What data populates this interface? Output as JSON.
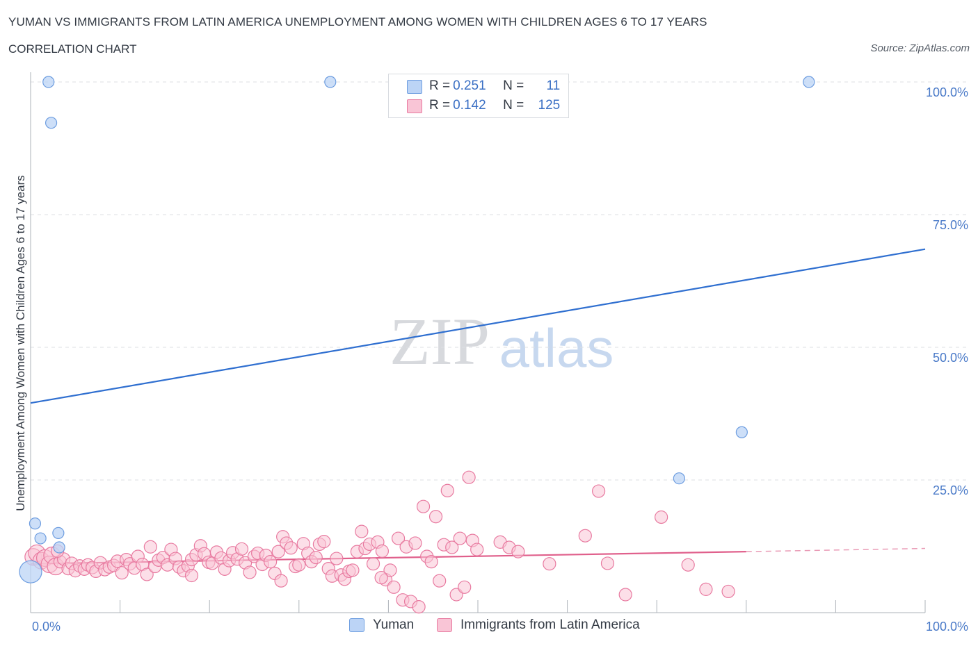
{
  "chart_data": {
    "type": "scatter",
    "title": "YUMAN VS IMMIGRANTS FROM LATIN AMERICA UNEMPLOYMENT AMONG WOMEN WITH CHILDREN AGES 6 TO 17 YEARS",
    "subtitle": "CORRELATION CHART",
    "source": "Source: ZipAtlas.com",
    "ylabel": "Unemployment Among Women with Children Ages 6 to 17 years",
    "xlim": [
      0,
      100
    ],
    "ylim": [
      0,
      100
    ],
    "x_tick_labels": [
      "0.0%",
      "100.0%"
    ],
    "y_tick_labels": [
      "100.0%",
      "75.0%",
      "50.0%",
      "25.0%"
    ],
    "y_tick_values": [
      100,
      75,
      50,
      25
    ],
    "watermark": {
      "zip": "ZIP",
      "atlas": "atlas"
    },
    "legend": {
      "rows": [
        {
          "r_label": "R = ",
          "r_value": "0.251",
          "n_label": "N = ",
          "n_value": "11"
        },
        {
          "r_label": "R = ",
          "r_value": "0.142",
          "n_label": "N = ",
          "n_value": "125"
        }
      ]
    },
    "series": [
      {
        "name": "Yuman",
        "color": "#6d9de0",
        "fill": "#bcd4f6",
        "trend": {
          "x0": 0,
          "y0": 39.5,
          "x1": 100,
          "y1": 68.5
        },
        "points": [
          {
            "x": 2.0,
            "y": 100
          },
          {
            "x": 2.3,
            "y": 92.3
          },
          {
            "x": 33.5,
            "y": 100
          },
          {
            "x": 87.0,
            "y": 100
          },
          {
            "x": 79.5,
            "y": 34.0
          },
          {
            "x": 72.5,
            "y": 25.3
          },
          {
            "x": 0.5,
            "y": 16.8
          },
          {
            "x": 1.1,
            "y": 14.0
          },
          {
            "x": 3.1,
            "y": 15.0
          },
          {
            "x": 3.2,
            "y": 12.3
          },
          {
            "x": 0.0,
            "y": 7.7
          }
        ]
      },
      {
        "name": "Immigrants from Latin America",
        "color": "#e87aa0",
        "fill": "#f9c5d6",
        "trend": {
          "x0": 0,
          "y0": 9.2,
          "x1": 80,
          "y1": 11.5,
          "dash_x1": 100,
          "dash_y1": 12.1
        },
        "points": [
          {
            "x": 0.3,
            "y": 10.5
          },
          {
            "x": 0.7,
            "y": 11.2
          },
          {
            "x": 1.2,
            "y": 9.8
          },
          {
            "x": 1.6,
            "y": 10.3
          },
          {
            "x": 2.1,
            "y": 9.1
          },
          {
            "x": 2.4,
            "y": 10.8
          },
          {
            "x": 2.8,
            "y": 8.7
          },
          {
            "x": 3.3,
            "y": 9.6
          },
          {
            "x": 3.7,
            "y": 10.1
          },
          {
            "x": 4.2,
            "y": 8.3
          },
          {
            "x": 4.6,
            "y": 9.3
          },
          {
            "x": 5.0,
            "y": 7.9
          },
          {
            "x": 5.5,
            "y": 8.8
          },
          {
            "x": 6.0,
            "y": 8.2
          },
          {
            "x": 6.4,
            "y": 9.0
          },
          {
            "x": 6.9,
            "y": 8.5
          },
          {
            "x": 7.3,
            "y": 7.8
          },
          {
            "x": 7.8,
            "y": 9.4
          },
          {
            "x": 8.3,
            "y": 8.1
          },
          {
            "x": 8.8,
            "y": 8.6
          },
          {
            "x": 9.3,
            "y": 8.9
          },
          {
            "x": 9.7,
            "y": 9.7
          },
          {
            "x": 10.2,
            "y": 7.5
          },
          {
            "x": 10.7,
            "y": 10.0
          },
          {
            "x": 11.1,
            "y": 9.2
          },
          {
            "x": 11.6,
            "y": 8.4
          },
          {
            "x": 12.0,
            "y": 10.6
          },
          {
            "x": 12.5,
            "y": 9.1
          },
          {
            "x": 13.0,
            "y": 7.2
          },
          {
            "x": 13.4,
            "y": 12.4
          },
          {
            "x": 13.9,
            "y": 8.7
          },
          {
            "x": 14.3,
            "y": 9.9
          },
          {
            "x": 14.8,
            "y": 10.4
          },
          {
            "x": 15.3,
            "y": 9.0
          },
          {
            "x": 15.7,
            "y": 11.9
          },
          {
            "x": 16.2,
            "y": 10.2
          },
          {
            "x": 16.6,
            "y": 8.6
          },
          {
            "x": 17.1,
            "y": 7.9
          },
          {
            "x": 17.6,
            "y": 8.8
          },
          {
            "x": 18.0,
            "y": 10.0
          },
          {
            "x": 18.5,
            "y": 10.9
          },
          {
            "x": 19.0,
            "y": 12.6
          },
          {
            "x": 19.4,
            "y": 11.1
          },
          {
            "x": 19.9,
            "y": 9.5
          },
          {
            "x": 20.3,
            "y": 9.3
          },
          {
            "x": 20.8,
            "y": 11.4
          },
          {
            "x": 21.3,
            "y": 10.3
          },
          {
            "x": 21.7,
            "y": 8.2
          },
          {
            "x": 22.2,
            "y": 9.8
          },
          {
            "x": 22.6,
            "y": 11.3
          },
          {
            "x": 23.1,
            "y": 10.1
          },
          {
            "x": 23.6,
            "y": 12.0
          },
          {
            "x": 24.0,
            "y": 9.4
          },
          {
            "x": 24.5,
            "y": 7.6
          },
          {
            "x": 25.0,
            "y": 10.6
          },
          {
            "x": 25.4,
            "y": 11.2
          },
          {
            "x": 25.9,
            "y": 9.1
          },
          {
            "x": 26.3,
            "y": 10.8
          },
          {
            "x": 26.8,
            "y": 9.6
          },
          {
            "x": 27.3,
            "y": 7.4
          },
          {
            "x": 27.7,
            "y": 11.5
          },
          {
            "x": 28.2,
            "y": 14.3
          },
          {
            "x": 28.6,
            "y": 13.1
          },
          {
            "x": 29.1,
            "y": 12.2
          },
          {
            "x": 29.6,
            "y": 8.7
          },
          {
            "x": 30.0,
            "y": 9.0
          },
          {
            "x": 30.5,
            "y": 13.0
          },
          {
            "x": 31.0,
            "y": 11.2
          },
          {
            "x": 31.4,
            "y": 9.6
          },
          {
            "x": 31.9,
            "y": 10.4
          },
          {
            "x": 32.3,
            "y": 12.9
          },
          {
            "x": 32.8,
            "y": 13.4
          },
          {
            "x": 33.3,
            "y": 8.3
          },
          {
            "x": 33.7,
            "y": 6.9
          },
          {
            "x": 34.2,
            "y": 10.2
          },
          {
            "x": 34.7,
            "y": 7.1
          },
          {
            "x": 35.1,
            "y": 6.3
          },
          {
            "x": 35.6,
            "y": 7.8
          },
          {
            "x": 36.0,
            "y": 8.0
          },
          {
            "x": 36.5,
            "y": 11.5
          },
          {
            "x": 37.0,
            "y": 15.3
          },
          {
            "x": 37.4,
            "y": 12.1
          },
          {
            "x": 37.9,
            "y": 12.9
          },
          {
            "x": 38.3,
            "y": 9.2
          },
          {
            "x": 38.8,
            "y": 13.3
          },
          {
            "x": 39.3,
            "y": 11.6
          },
          {
            "x": 39.7,
            "y": 6.2
          },
          {
            "x": 40.2,
            "y": 8.0
          },
          {
            "x": 40.6,
            "y": 4.8
          },
          {
            "x": 41.1,
            "y": 14.0
          },
          {
            "x": 41.6,
            "y": 2.4
          },
          {
            "x": 42.0,
            "y": 12.4
          },
          {
            "x": 42.5,
            "y": 2.1
          },
          {
            "x": 43.0,
            "y": 13.1
          },
          {
            "x": 43.4,
            "y": 1.1
          },
          {
            "x": 43.9,
            "y": 20.0
          },
          {
            "x": 44.3,
            "y": 10.6
          },
          {
            "x": 44.8,
            "y": 9.6
          },
          {
            "x": 45.3,
            "y": 18.1
          },
          {
            "x": 45.7,
            "y": 6.0
          },
          {
            "x": 46.2,
            "y": 12.8
          },
          {
            "x": 46.6,
            "y": 23.0
          },
          {
            "x": 47.1,
            "y": 12.3
          },
          {
            "x": 47.6,
            "y": 3.4
          },
          {
            "x": 48.0,
            "y": 14.0
          },
          {
            "x": 48.5,
            "y": 4.8
          },
          {
            "x": 49.0,
            "y": 25.5
          },
          {
            "x": 49.4,
            "y": 13.6
          },
          {
            "x": 49.9,
            "y": 11.9
          },
          {
            "x": 39.2,
            "y": 6.6
          },
          {
            "x": 52.5,
            "y": 13.3
          },
          {
            "x": 53.5,
            "y": 12.3
          },
          {
            "x": 54.5,
            "y": 11.5
          },
          {
            "x": 58.0,
            "y": 9.2
          },
          {
            "x": 62.0,
            "y": 14.5
          },
          {
            "x": 63.5,
            "y": 22.9
          },
          {
            "x": 66.5,
            "y": 3.4
          },
          {
            "x": 70.5,
            "y": 18.0
          },
          {
            "x": 73.5,
            "y": 9.0
          },
          {
            "x": 75.5,
            "y": 4.4
          },
          {
            "x": 78.0,
            "y": 4.0
          },
          {
            "x": 64.5,
            "y": 9.3
          },
          {
            "x": 28.0,
            "y": 6.0
          },
          {
            "x": 18.0,
            "y": 7.0
          },
          {
            "x": 3.0,
            "y": 11.6
          }
        ]
      }
    ]
  }
}
